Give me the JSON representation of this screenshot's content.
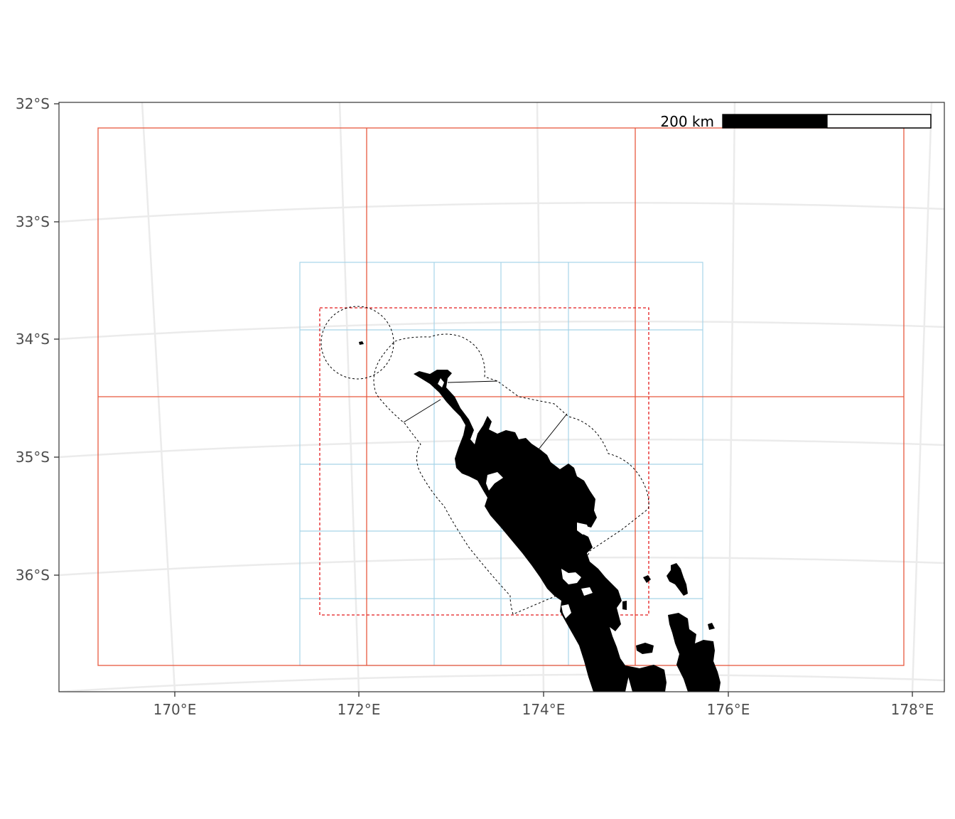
{
  "map": {
    "x_ticks": [
      "170°E",
      "172°E",
      "174°E",
      "176°E",
      "178°E"
    ],
    "y_ticks": [
      "32°S",
      "33°S",
      "34°S",
      "35°S",
      "36°S"
    ],
    "scale_bar": {
      "label": "200 km"
    },
    "colors": {
      "coarse_grid": "#e8593f",
      "fine_grid": "#a6d4e8",
      "inner_extent": "#e41a1c",
      "land": "#000000",
      "graticule": "#ebebeb",
      "boundary": "#000000"
    },
    "layers": [
      "coarse-grid",
      "fine-grid",
      "inner-extent-dashed",
      "zone-boundary-dashed",
      "land"
    ]
  }
}
